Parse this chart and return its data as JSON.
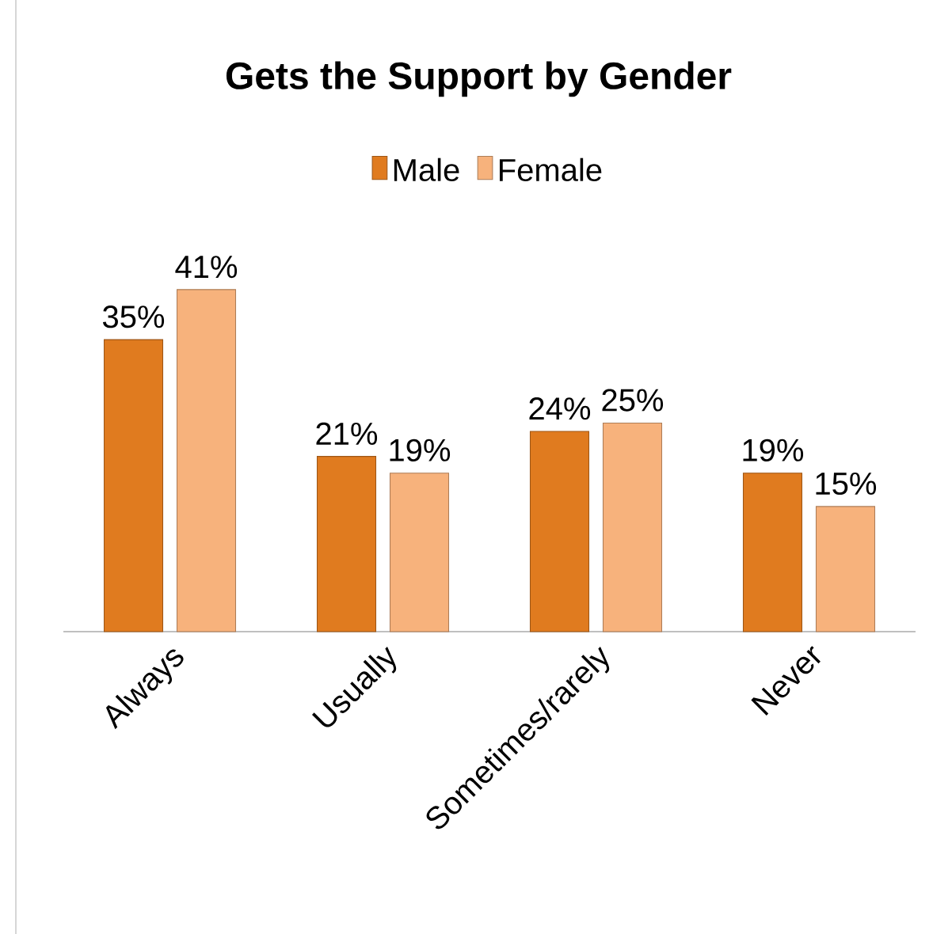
{
  "chart_data": {
    "type": "bar",
    "title": "Gets the Support by Gender",
    "categories": [
      "Always",
      "Usually",
      "Sometimes/rarely",
      "Never"
    ],
    "series": [
      {
        "name": "Male",
        "color": "#e07b1f",
        "values": [
          35,
          21,
          24,
          19
        ],
        "value_labels": [
          "35%",
          "21%",
          "24%",
          "19%"
        ]
      },
      {
        "name": "Female",
        "color": "#f7b27c",
        "values": [
          41,
          19,
          25,
          15
        ],
        "value_labels": [
          "41%",
          "19%",
          "25%",
          "15%"
        ]
      }
    ],
    "legend": "top"
  }
}
